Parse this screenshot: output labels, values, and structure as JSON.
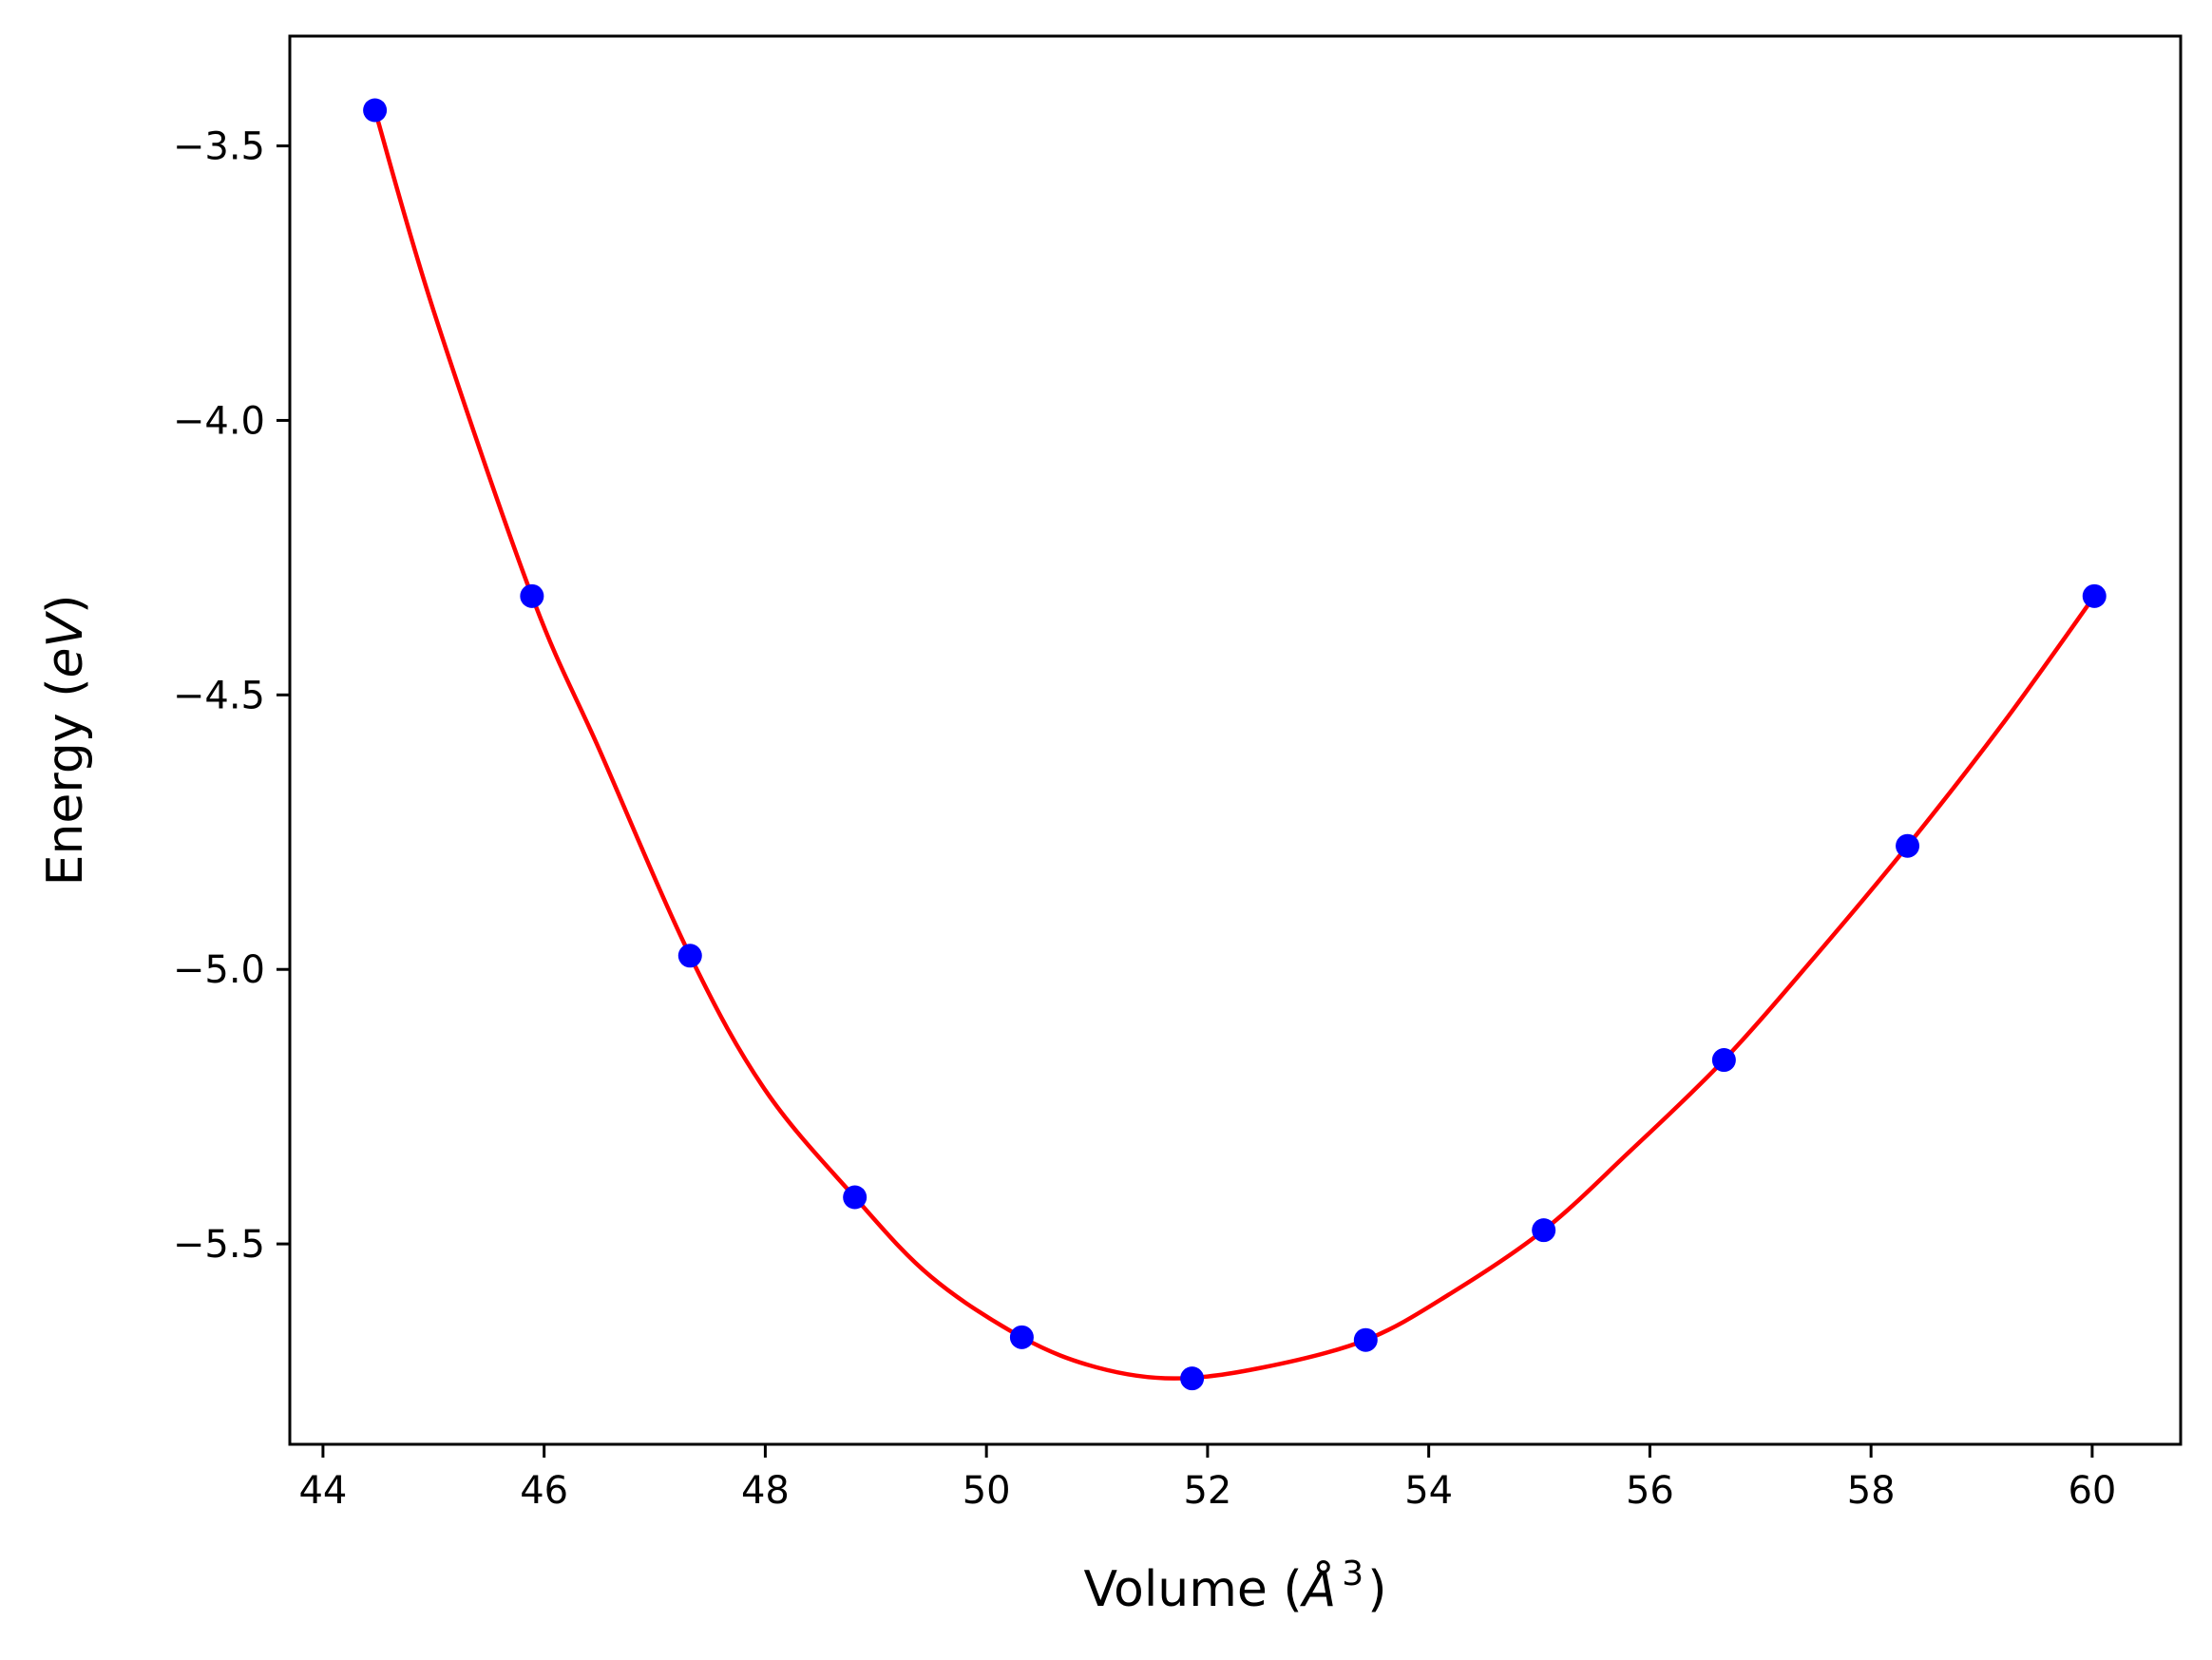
{
  "chart_data": {
    "type": "line",
    "xlabel_text": "Volume (",
    "xlabel_symbol": "Å",
    "xlabel_exp": "3",
    "xlabel_close": ")",
    "ylabel_text": "Energy (",
    "ylabel_unit": "eV",
    "ylabel_close": ")",
    "xlim": [
      43.7,
      60.8
    ],
    "ylim": [
      -5.865,
      -3.3
    ],
    "xticks": [
      44,
      46,
      48,
      50,
      52,
      54,
      56,
      58,
      60
    ],
    "xtick_labels": [
      "44",
      "46",
      "48",
      "50",
      "52",
      "54",
      "56",
      "58",
      "60"
    ],
    "yticks": [
      -3.5,
      -4.0,
      -4.5,
      -5.0,
      -5.5
    ],
    "ytick_labels": [
      "−3.5",
      "−4.0",
      "−4.5",
      "−5.0",
      "−5.5"
    ],
    "grid": false,
    "series": [
      {
        "kind": "scatter",
        "color": "#0000ff",
        "points": [
          [
            44.47,
            -3.435
          ],
          [
            45.89,
            -4.32
          ],
          [
            47.32,
            -4.975
          ],
          [
            48.81,
            -5.415
          ],
          [
            50.32,
            -5.67
          ],
          [
            51.86,
            -5.745
          ],
          [
            53.43,
            -5.675
          ],
          [
            55.04,
            -5.475
          ],
          [
            56.67,
            -5.165
          ],
          [
            58.33,
            -4.775
          ],
          [
            60.02,
            -4.32
          ]
        ]
      },
      {
        "kind": "line",
        "color": "#ff0000",
        "points": [
          [
            44.47,
            -3.435
          ],
          [
            45.0,
            -3.8
          ],
          [
            45.89,
            -4.32
          ],
          [
            46.5,
            -4.6
          ],
          [
            47.32,
            -4.975
          ],
          [
            48.0,
            -5.22
          ],
          [
            48.81,
            -5.415
          ],
          [
            49.5,
            -5.56
          ],
          [
            50.32,
            -5.67
          ],
          [
            51.0,
            -5.725
          ],
          [
            51.7,
            -5.745
          ],
          [
            52.5,
            -5.725
          ],
          [
            53.43,
            -5.675
          ],
          [
            54.2,
            -5.59
          ],
          [
            55.04,
            -5.475
          ],
          [
            55.8,
            -5.335
          ],
          [
            56.67,
            -5.165
          ],
          [
            57.5,
            -4.975
          ],
          [
            58.33,
            -4.775
          ],
          [
            59.2,
            -4.55
          ],
          [
            60.02,
            -4.32
          ]
        ]
      }
    ]
  }
}
